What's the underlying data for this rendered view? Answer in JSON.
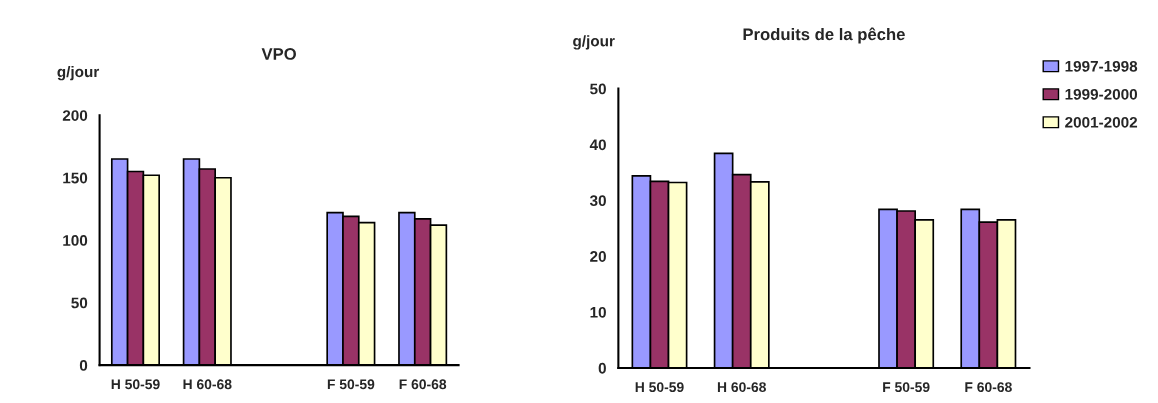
{
  "chart_data": [
    {
      "type": "bar",
      "title": "VPO",
      "ylabel": "g/jour",
      "categories": [
        "H 50-59",
        "H 60-68",
        null,
        "F 50-59",
        "F 60-68"
      ],
      "ylim": [
        0,
        200
      ],
      "yticks": [
        0,
        50,
        100,
        150,
        200
      ],
      "grid": false,
      "legend": false,
      "series": [
        {
          "color": "#9999ff",
          "values": [
            165,
            165,
            null,
            122,
            122
          ]
        },
        {
          "color": "#993366",
          "values": [
            155,
            157,
            null,
            119,
            117
          ]
        },
        {
          "color": "#ffffcc",
          "values": [
            152,
            150,
            null,
            114,
            112
          ]
        }
      ]
    },
    {
      "type": "bar",
      "title": "Produits de la pêche",
      "ylabel": "g/jour",
      "categories": [
        "H 50-59",
        "H 60-68",
        null,
        "F 50-59",
        "F 60-68"
      ],
      "ylim": [
        0,
        50
      ],
      "yticks": [
        0,
        10,
        20,
        30,
        40,
        50
      ],
      "grid": false,
      "legend": "right",
      "series": [
        {
          "name": "1997-1998",
          "color": "#9999ff",
          "values": [
            34.4,
            38.4,
            null,
            28.4,
            28.4
          ]
        },
        {
          "name": "1999-2000",
          "color": "#993366",
          "values": [
            33.4,
            34.6,
            null,
            28.1,
            26.1
          ]
        },
        {
          "name": "2001-2002",
          "color": "#ffffcc",
          "values": [
            33.2,
            33.3,
            null,
            26.5,
            26.5
          ]
        }
      ]
    }
  ]
}
